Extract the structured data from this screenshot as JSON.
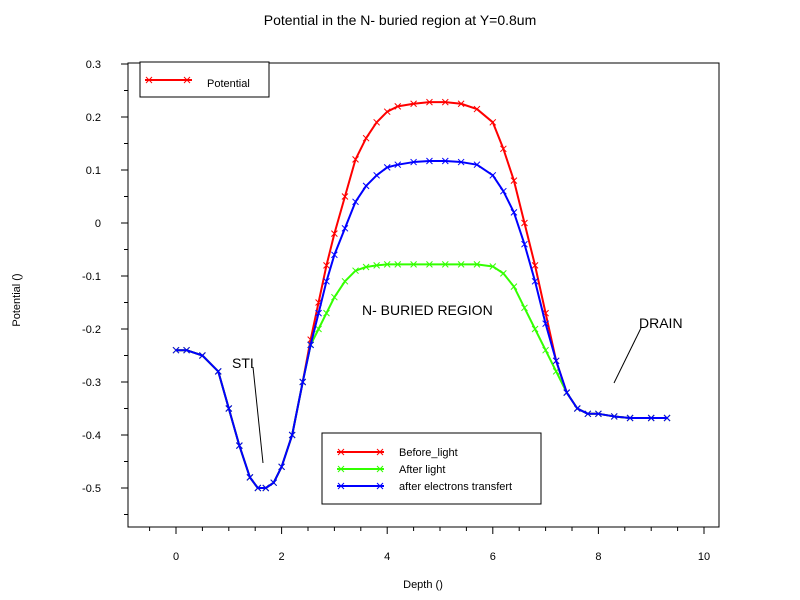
{
  "chart_data": {
    "type": "line",
    "title": "Potential in the N- buried region at Y=0.8um",
    "xlabel": "Depth ()",
    "ylabel": "Potential ()",
    "xlim": [
      -1,
      10.3
    ],
    "ylim": [
      -0.57,
      0.3
    ],
    "xticks": [
      "0",
      "2",
      "4",
      "6",
      "8",
      "10"
    ],
    "yticks": [
      "0.3",
      "0.2",
      "0.1",
      "0",
      "-0.1",
      "-0.2",
      "-0.3",
      "-0.4",
      "-0.5"
    ],
    "grid": false,
    "legend_top": {
      "label": "Potential",
      "color": "#ff0000",
      "placement": "top-left"
    },
    "legend_bottom": {
      "placement": "bottom-center"
    },
    "annotations": [
      {
        "text": "STI",
        "x": 1.25,
        "y": -0.265
      },
      {
        "text": "N- BURIED REGION",
        "x": 4.15,
        "y": -0.165
      },
      {
        "text": "DRAIN",
        "x": 9.0,
        "y": -0.185
      }
    ],
    "series": [
      {
        "name": "Before_light",
        "color": "#ff0000",
        "x": [
          0,
          0.2,
          0.5,
          0.8,
          1.0,
          1.2,
          1.4,
          1.55,
          1.7,
          1.85,
          2.0,
          2.2,
          2.4,
          2.55,
          2.7,
          2.85,
          3.0,
          3.2,
          3.4,
          3.6,
          3.8,
          4.0,
          4.2,
          4.5,
          4.8,
          5.1,
          5.4,
          5.7,
          6.0,
          6.2,
          6.4,
          6.6,
          6.8,
          7.0,
          7.2,
          7.4,
          7.6,
          7.8,
          8.0,
          8.3,
          8.6,
          9.0,
          9.3
        ],
        "y": [
          -0.24,
          -0.24,
          -0.25,
          -0.28,
          -0.35,
          -0.42,
          -0.48,
          -0.5,
          -0.5,
          -0.49,
          -0.46,
          -0.4,
          -0.3,
          -0.22,
          -0.15,
          -0.08,
          -0.02,
          0.05,
          0.12,
          0.16,
          0.19,
          0.21,
          0.22,
          0.225,
          0.228,
          0.228,
          0.225,
          0.215,
          0.19,
          0.14,
          0.08,
          0.0,
          -0.08,
          -0.17,
          -0.26,
          -0.32,
          -0.35,
          -0.36,
          -0.36,
          -0.365,
          -0.368,
          -0.368,
          -0.368
        ]
      },
      {
        "name": "After light",
        "color": "#33ff00",
        "x": [
          0,
          0.2,
          0.5,
          0.8,
          1.0,
          1.2,
          1.4,
          1.55,
          1.7,
          1.85,
          2.0,
          2.2,
          2.4,
          2.55,
          2.7,
          2.85,
          3.0,
          3.2,
          3.4,
          3.6,
          3.8,
          4.0,
          4.2,
          4.5,
          4.8,
          5.1,
          5.4,
          5.7,
          6.0,
          6.2,
          6.4,
          6.6,
          6.8,
          7.0,
          7.2,
          7.4,
          7.6,
          7.8,
          8.0,
          8.3,
          8.6,
          9.0,
          9.3
        ],
        "y": [
          -0.24,
          -0.24,
          -0.25,
          -0.28,
          -0.35,
          -0.42,
          -0.48,
          -0.5,
          -0.5,
          -0.49,
          -0.46,
          -0.4,
          -0.3,
          -0.23,
          -0.2,
          -0.17,
          -0.14,
          -0.11,
          -0.09,
          -0.083,
          -0.08,
          -0.078,
          -0.078,
          -0.078,
          -0.078,
          -0.078,
          -0.078,
          -0.078,
          -0.082,
          -0.095,
          -0.12,
          -0.16,
          -0.2,
          -0.24,
          -0.28,
          -0.32,
          -0.35,
          -0.36,
          -0.36,
          -0.365,
          -0.368,
          -0.368,
          -0.368
        ]
      },
      {
        "name": "after electrons transfert",
        "color": "#0000ff",
        "x": [
          0,
          0.2,
          0.5,
          0.8,
          1.0,
          1.2,
          1.4,
          1.55,
          1.7,
          1.85,
          2.0,
          2.2,
          2.4,
          2.55,
          2.7,
          2.85,
          3.0,
          3.2,
          3.4,
          3.6,
          3.8,
          4.0,
          4.2,
          4.5,
          4.8,
          5.1,
          5.4,
          5.7,
          6.0,
          6.2,
          6.4,
          6.6,
          6.8,
          7.0,
          7.2,
          7.4,
          7.6,
          7.8,
          8.0,
          8.3,
          8.6,
          9.0,
          9.3
        ],
        "y": [
          -0.24,
          -0.24,
          -0.25,
          -0.28,
          -0.35,
          -0.42,
          -0.48,
          -0.5,
          -0.5,
          -0.49,
          -0.46,
          -0.4,
          -0.3,
          -0.23,
          -0.17,
          -0.11,
          -0.06,
          -0.01,
          0.04,
          0.07,
          0.09,
          0.105,
          0.11,
          0.115,
          0.117,
          0.117,
          0.115,
          0.11,
          0.09,
          0.06,
          0.02,
          -0.04,
          -0.11,
          -0.19,
          -0.26,
          -0.32,
          -0.35,
          -0.36,
          -0.36,
          -0.365,
          -0.368,
          -0.368,
          -0.368
        ]
      }
    ]
  }
}
